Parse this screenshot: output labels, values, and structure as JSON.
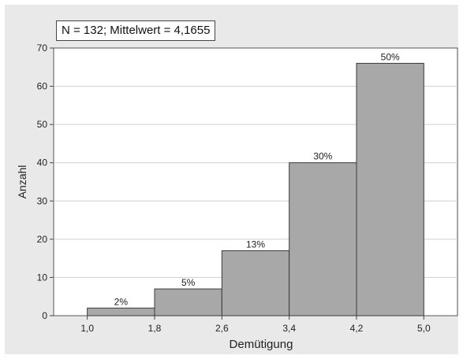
{
  "chart_data": {
    "type": "bar",
    "annotation": "N = 132; Mittelwert = 4,1655",
    "xlabel": "Demütigung",
    "ylabel": "Anzahl",
    "x_ticks": [
      "1,0",
      "1,8",
      "2,6",
      "3,4",
      "4,2",
      "5,0"
    ],
    "bins": [
      [
        1.0,
        1.8
      ],
      [
        1.8,
        2.6
      ],
      [
        2.6,
        3.4
      ],
      [
        3.4,
        4.2
      ],
      [
        4.2,
        5.0
      ]
    ],
    "values": [
      2,
      7,
      17,
      40,
      66
    ],
    "data_labels": [
      "2%",
      "5%",
      "13%",
      "30%",
      "50%"
    ],
    "ylim": [
      0,
      70
    ],
    "y_ticks": [
      0,
      10,
      20,
      30,
      40,
      50,
      60,
      70
    ],
    "grid": true,
    "bar_color": "#a8a8a8",
    "bar_edge_color": "#3a3a3a",
    "background_color": "#e9e9e9",
    "plot_background_color": "#ffffff"
  }
}
